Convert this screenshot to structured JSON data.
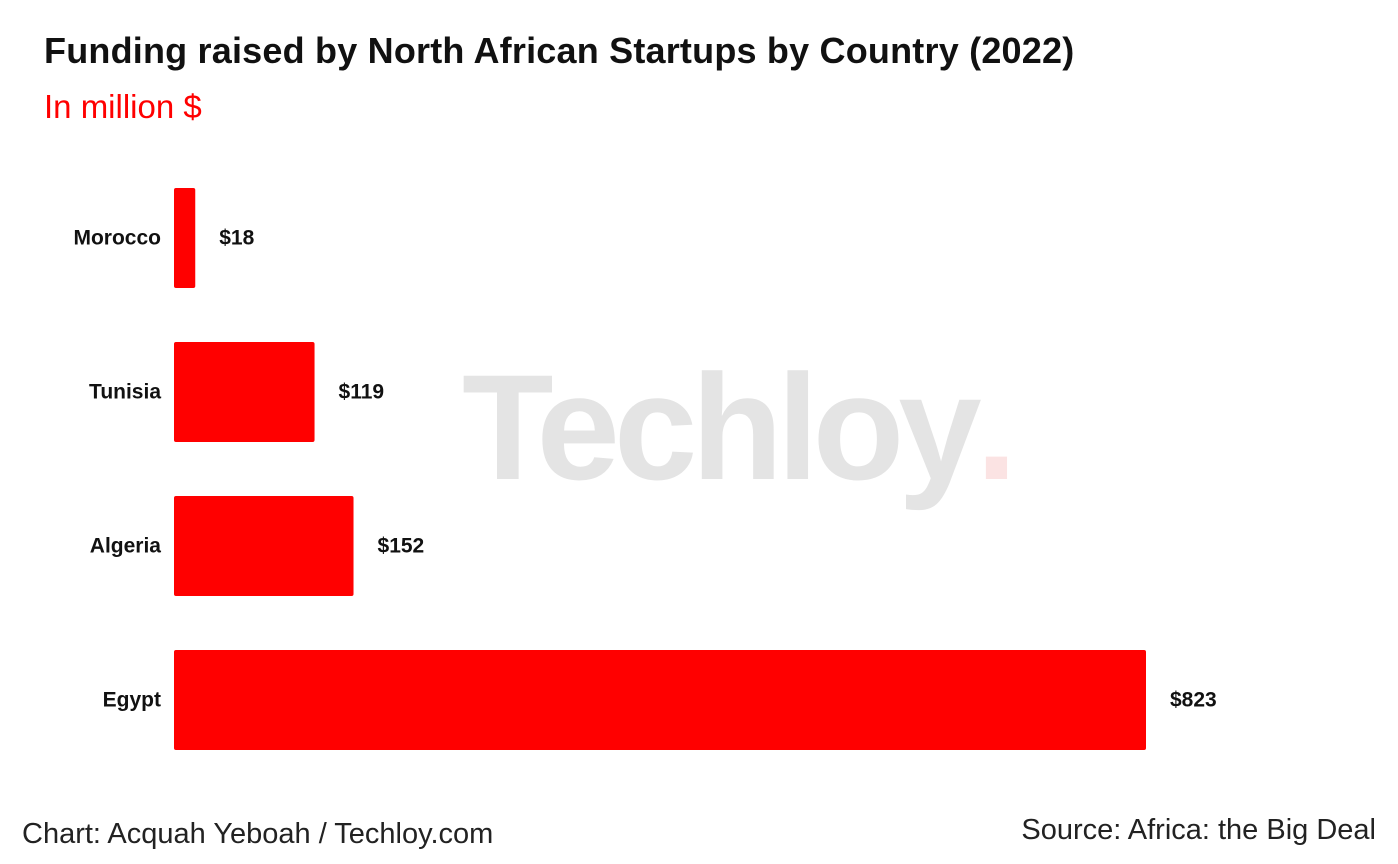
{
  "colors": {
    "bar": "#ff0000",
    "subtitle": "#ff0000",
    "watermark_text": "#e4e4e4",
    "watermark_dot": "#fbe3e3"
  },
  "watermark": {
    "text": "Techloy",
    "dot": "."
  },
  "footer": {
    "credit": "Chart: Acquah Yeboah / Techloy.com",
    "source": "Source: Africa: the Big Deal"
  },
  "chart_data": {
    "type": "bar",
    "orientation": "horizontal",
    "title": "Funding raised by North African Startups by Country (2022)",
    "subtitle": "In million $",
    "categories": [
      "Morocco",
      "Tunisia",
      "Algeria",
      "Egypt"
    ],
    "values": [
      18,
      119,
      152,
      823
    ],
    "value_labels": [
      "$18",
      "$119",
      "$152",
      "$823"
    ],
    "xlim": [
      0,
      823
    ],
    "xlabel": "",
    "ylabel": "",
    "grid": false,
    "legend": "none"
  }
}
